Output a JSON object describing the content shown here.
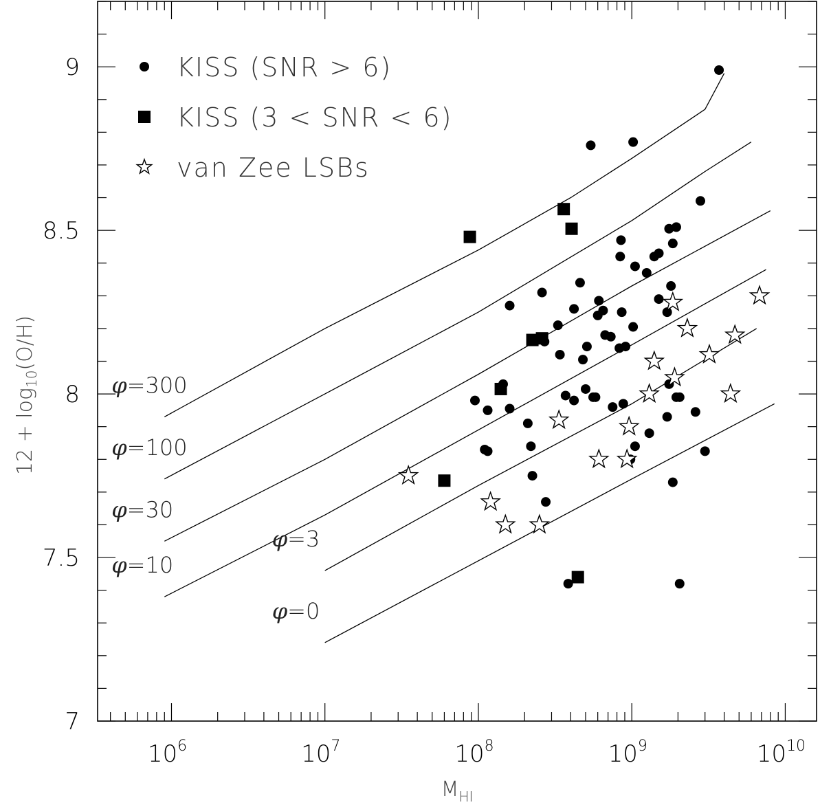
{
  "chart_data": {
    "type": "scatter",
    "xlabel": "M",
    "xlabel_sub": "HI",
    "ylabel_parts": [
      "12 + log",
      "10",
      "(O/H)"
    ],
    "xscale": "log",
    "xlim": [
      330000,
      16000000000
    ],
    "ylim": [
      7.0,
      9.2
    ],
    "xticks": [
      {
        "value": 1000000,
        "base": "10",
        "exp": "6"
      },
      {
        "value": 10000000,
        "base": "10",
        "exp": "7"
      },
      {
        "value": 100000000,
        "base": "10",
        "exp": "8"
      },
      {
        "value": 1000000000,
        "base": "10",
        "exp": "9"
      },
      {
        "value": 10000000000,
        "base": "10",
        "exp": "10"
      }
    ],
    "yticks": [
      7,
      7.5,
      8,
      8.5,
      9
    ],
    "ytick_labels": [
      "7",
      "7.5",
      "8",
      "8.5",
      "9"
    ],
    "legend_position": "top-left",
    "series": [
      {
        "name": "KISS (SNR > 6)",
        "marker": "circle",
        "points": [
          [
            3700000000.0,
            8.99
          ],
          [
            1020000000.0,
            8.77
          ],
          [
            540000000.0,
            8.76
          ],
          [
            2800000000.0,
            8.59
          ],
          [
            1750000000.0,
            8.505
          ],
          [
            1950000000.0,
            8.51
          ],
          [
            850000000.0,
            8.47
          ],
          [
            1850000000.0,
            8.46
          ],
          [
            1500000000.0,
            8.43
          ],
          [
            1400000000.0,
            8.42
          ],
          [
            840000000.0,
            8.42
          ],
          [
            1050000000.0,
            8.39
          ],
          [
            1250000000.0,
            8.37
          ],
          [
            460000000.0,
            8.34
          ],
          [
            1800000000.0,
            8.33
          ],
          [
            260000000.0,
            8.31
          ],
          [
            1500000000.0,
            8.29
          ],
          [
            610000000.0,
            8.285
          ],
          [
            160000000.0,
            8.27
          ],
          [
            420000000.0,
            8.26
          ],
          [
            650000000.0,
            8.255
          ],
          [
            860000000.0,
            8.25
          ],
          [
            1700000000.0,
            8.25
          ],
          [
            600000000.0,
            8.24
          ],
          [
            330000000.0,
            8.21
          ],
          [
            1020000000.0,
            8.205
          ],
          [
            670000000.0,
            8.18
          ],
          [
            730000000.0,
            8.175
          ],
          [
            270000000.0,
            8.16
          ],
          [
            510000000.0,
            8.145
          ],
          [
            830000000.0,
            8.14
          ],
          [
            910000000.0,
            8.145
          ],
          [
            340000000.0,
            8.12
          ],
          [
            480000000.0,
            8.105
          ],
          [
            145000000.0,
            8.03
          ],
          [
            500000000.0,
            8.015
          ],
          [
            1750000000.0,
            8.03
          ],
          [
            370000000.0,
            7.995
          ],
          [
            560000000.0,
            7.99
          ],
          [
            580000000.0,
            7.99
          ],
          [
            95000000.0,
            7.98
          ],
          [
            420000000.0,
            7.98
          ],
          [
            880000000.0,
            7.97
          ],
          [
            750000000.0,
            7.96
          ],
          [
            1950000000.0,
            7.99
          ],
          [
            2050000000.0,
            7.99
          ],
          [
            115000000.0,
            7.95
          ],
          [
            160000000.0,
            7.955
          ],
          [
            2600000000.0,
            7.945
          ],
          [
            1700000000.0,
            7.93
          ],
          [
            210000000.0,
            7.91
          ],
          [
            1300000000.0,
            7.88
          ],
          [
            220000000.0,
            7.84
          ],
          [
            1050000000.0,
            7.84
          ],
          [
            110000000.0,
            7.83
          ],
          [
            115000000.0,
            7.825
          ],
          [
            3000000000.0,
            7.825
          ],
          [
            980000000.0,
            7.8
          ],
          [
            225000000.0,
            7.75
          ],
          [
            1850000000.0,
            7.73
          ],
          [
            275000000.0,
            7.67
          ],
          [
            385000000.0,
            7.42
          ],
          [
            2050000000.0,
            7.42
          ]
        ]
      },
      {
        "name": "KISS (3 < SNR < 6)",
        "marker": "square",
        "points": [
          [
            88000000.0,
            8.48
          ],
          [
            360000000.0,
            8.565
          ],
          [
            405000000.0,
            8.505
          ],
          [
            225000000.0,
            8.165
          ],
          [
            260000000.0,
            8.17
          ],
          [
            140000000.0,
            8.015
          ],
          [
            60000000.0,
            7.735
          ],
          [
            445000000.0,
            7.44
          ]
        ]
      },
      {
        "name": "van Zee LSBs",
        "marker": "star",
        "points": [
          [
            6800000000.0,
            8.3
          ],
          [
            1850000000.0,
            8.28
          ],
          [
            2300000000.0,
            8.2
          ],
          [
            4700000000.0,
            8.18
          ],
          [
            3200000000.0,
            8.12
          ],
          [
            1400000000.0,
            8.1
          ],
          [
            1900000000.0,
            8.05
          ],
          [
            1300000000.0,
            8.0
          ],
          [
            4400000000.0,
            8.0
          ],
          [
            335000000.0,
            7.92
          ],
          [
            960000000.0,
            7.9
          ],
          [
            610000000.0,
            7.8
          ],
          [
            930000000.0,
            7.8
          ],
          [
            35000000.0,
            7.75
          ],
          [
            120000000.0,
            7.67
          ],
          [
            150000000.0,
            7.6
          ],
          [
            250000000.0,
            7.6
          ]
        ]
      }
    ],
    "model_curves": [
      {
        "label_sym": "φ",
        "label_val": "=300",
        "points": [
          [
            900000.0,
            7.93
          ],
          [
            10000000.0,
            8.2
          ],
          [
            100000000.0,
            8.44
          ],
          [
            400000000.0,
            8.6
          ],
          [
            1000000000.0,
            8.72
          ],
          [
            3000000000.0,
            8.87
          ],
          [
            4000000000.0,
            8.98
          ]
        ]
      },
      {
        "label_sym": "φ",
        "label_val": "=100",
        "points": [
          [
            900000.0,
            7.74
          ],
          [
            10000000.0,
            8.0
          ],
          [
            100000000.0,
            8.25
          ],
          [
            1000000000.0,
            8.53
          ],
          [
            3000000000.0,
            8.68
          ],
          [
            6000000000.0,
            8.77
          ]
        ]
      },
      {
        "label_sym": "φ",
        "label_val": "=30",
        "points": [
          [
            900000.0,
            7.55
          ],
          [
            10000000.0,
            7.8
          ],
          [
            100000000.0,
            8.06
          ],
          [
            1000000000.0,
            8.33
          ],
          [
            8000000000.0,
            8.56
          ]
        ]
      },
      {
        "label_sym": "φ",
        "label_val": "=10",
        "points": [
          [
            900000.0,
            7.38
          ],
          [
            10000000.0,
            7.63
          ],
          [
            100000000.0,
            7.89
          ],
          [
            1000000000.0,
            8.15
          ],
          [
            7500000000.0,
            8.38
          ]
        ]
      },
      {
        "label_sym": "φ",
        "label_val": "=3",
        "points": [
          [
            10000000.0,
            7.46
          ],
          [
            100000000.0,
            7.72
          ],
          [
            1000000000.0,
            7.97
          ],
          [
            6500000000.0,
            8.2
          ]
        ]
      },
      {
        "label_sym": "φ",
        "label_val": "=0",
        "points": [
          [
            10000000.0,
            7.24
          ],
          [
            100000000.0,
            7.49
          ],
          [
            1000000000.0,
            7.74
          ],
          [
            8500000000.0,
            7.97
          ]
        ]
      }
    ]
  }
}
